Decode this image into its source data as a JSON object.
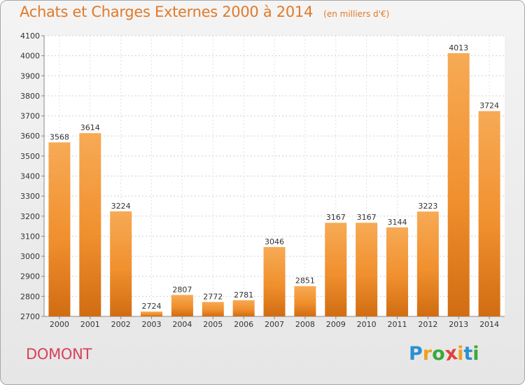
{
  "chart_data": {
    "type": "bar",
    "title": "Achats et Charges Externes 2000 à 2014",
    "subtitle": "(en milliers d'€)",
    "categories": [
      "2000",
      "2001",
      "2002",
      "2003",
      "2004",
      "2005",
      "2006",
      "2007",
      "2008",
      "2009",
      "2010",
      "2011",
      "2012",
      "2013",
      "2014"
    ],
    "values": [
      3568,
      3614,
      3224,
      2724,
      2807,
      2772,
      2781,
      3046,
      2851,
      3167,
      3167,
      3144,
      3223,
      4013,
      3724
    ],
    "ylim": [
      2700,
      4100
    ],
    "yticks": [
      2700,
      2800,
      2900,
      3000,
      3100,
      3200,
      3300,
      3400,
      3500,
      3600,
      3700,
      3800,
      3900,
      4000,
      4100
    ],
    "grid": true,
    "bar_color": "#f0902e",
    "bar_color_light": "#f7aa55",
    "bar_color_dark": "#d16c12",
    "xlabel": "",
    "ylabel": ""
  },
  "town": "DOMONT",
  "logo": {
    "letters": [
      "P",
      "r",
      "o",
      "x",
      "i",
      "t",
      "i"
    ],
    "colors": [
      "#2e8fd0",
      "#f0a020",
      "#3aa83a",
      "#e04040",
      "#f0a020",
      "#2e8fd0",
      "#3aa83a"
    ]
  }
}
